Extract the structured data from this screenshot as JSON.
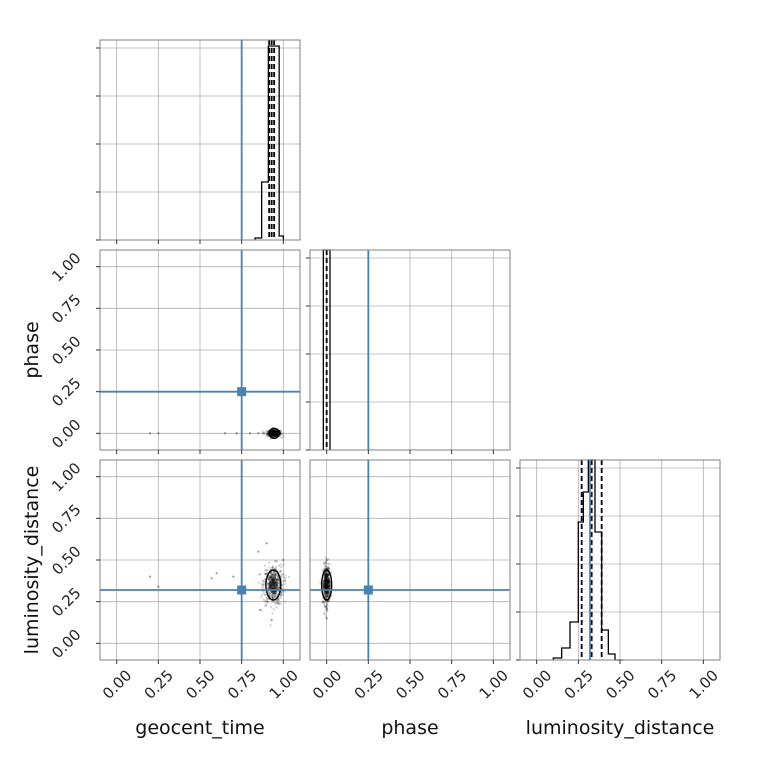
{
  "chart_data": {
    "type": "corner",
    "parameters": [
      "geocent_time",
      "phase",
      "luminosity_distance"
    ],
    "axis_labels": {
      "x": [
        "geocent_time",
        "phase",
        "luminosity_distance"
      ],
      "y_row2": "phase",
      "y_row3": "luminosity_distance"
    },
    "xlim": [
      -0.1,
      1.1
    ],
    "tick_values": [
      0.0,
      0.25,
      0.5,
      0.75,
      1.0
    ],
    "tick_labels": [
      "0.00",
      "0.25",
      "0.50",
      "0.75",
      "1.00"
    ],
    "grid": true,
    "truths": {
      "geocent_time": 0.75,
      "phase": 0.25,
      "luminosity_distance": 0.32
    },
    "colors": {
      "truth": "#4682b4",
      "hist": "#000000",
      "grid": "#b0b0b0",
      "frame": "#808080",
      "samples": "#000000"
    },
    "marginals": [
      {
        "parameter": "geocent_time",
        "bin_edges": [
          0.83,
          0.87,
          0.91,
          0.935,
          0.955,
          0.975,
          1.0
        ],
        "counts": [
          0.01,
          0.29,
          0.97,
          0.97,
          0.97,
          0.02
        ],
        "quantiles": [
          0.915,
          0.93,
          0.945
        ]
      },
      {
        "parameter": "phase",
        "bin_edges": [
          -0.02,
          0.0,
          0.02
        ],
        "counts": [
          1.0,
          1.0
        ],
        "quantiles": [
          0.0
        ]
      },
      {
        "parameter": "luminosity_distance",
        "bin_edges": [
          0.1,
          0.15,
          0.2,
          0.25,
          0.28,
          0.31,
          0.35,
          0.39,
          0.43,
          0.47,
          0.52
        ],
        "counts": [
          0.01,
          0.06,
          0.19,
          0.69,
          0.84,
          1.0,
          0.64,
          0.15,
          0.03,
          0.0
        ],
        "quantiles": [
          0.27,
          0.33,
          0.39
        ]
      }
    ],
    "scatter_panels": [
      {
        "x_param": "geocent_time",
        "y_param": "phase",
        "points": [
          [
            0.2,
            0.0
          ],
          [
            0.25,
            0.0
          ],
          [
            0.65,
            0.0
          ],
          [
            0.72,
            0.0
          ],
          [
            0.8,
            0.0
          ],
          [
            0.85,
            0.0
          ],
          [
            0.88,
            0.0
          ],
          [
            0.92,
            0.0
          ],
          [
            0.94,
            0.0
          ],
          [
            0.96,
            0.0
          ],
          [
            0.98,
            0.0
          ]
        ],
        "core": {
          "x": 0.945,
          "y": 0.0,
          "sx": 0.02,
          "sy": 0.01
        }
      },
      {
        "x_param": "geocent_time",
        "y_param": "luminosity_distance",
        "points": [
          [
            0.2,
            0.4
          ],
          [
            0.25,
            0.34
          ],
          [
            0.57,
            0.39
          ],
          [
            0.6,
            0.42
          ],
          [
            0.7,
            0.4
          ],
          [
            0.85,
            0.55
          ],
          [
            0.86,
            0.2
          ],
          [
            0.9,
            0.6
          ],
          [
            0.93,
            0.14
          ],
          [
            1.0,
            0.5
          ]
        ],
        "core": {
          "x": 0.94,
          "y": 0.35,
          "sx": 0.03,
          "sy": 0.06
        }
      },
      {
        "x_param": "phase",
        "y_param": "luminosity_distance",
        "points": [
          [
            -0.02,
            0.25
          ],
          [
            0.0,
            0.5
          ],
          [
            0.0,
            0.15
          ],
          [
            0.01,
            0.45
          ],
          [
            -0.01,
            0.28
          ]
        ],
        "core": {
          "x": 0.0,
          "y": 0.35,
          "sx": 0.01,
          "sy": 0.06
        }
      }
    ]
  }
}
